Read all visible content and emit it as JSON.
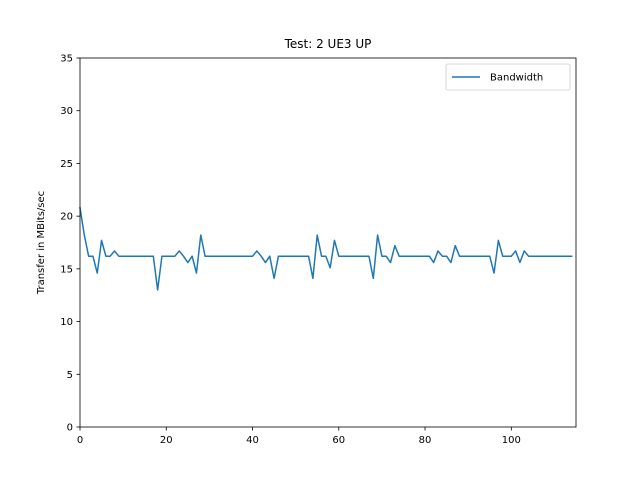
{
  "chart_data": {
    "type": "line",
    "title": "Test: 2 UE3 UP",
    "xlabel": "",
    "ylabel": "Transfer in MBits/sec",
    "xlim": [
      0,
      115
    ],
    "ylim": [
      0,
      35
    ],
    "xticks": [
      0,
      20,
      40,
      60,
      80,
      100
    ],
    "yticks": [
      0,
      5,
      10,
      15,
      20,
      25,
      30,
      35
    ],
    "grid": false,
    "legend_position": "top-right",
    "series": [
      {
        "name": "Bandwidth",
        "color": "#1f77b4",
        "x": [
          0,
          1,
          2,
          3,
          4,
          5,
          6,
          7,
          8,
          9,
          10,
          11,
          12,
          13,
          14,
          15,
          16,
          17,
          18,
          19,
          20,
          21,
          22,
          23,
          24,
          25,
          26,
          27,
          28,
          29,
          30,
          31,
          32,
          33,
          34,
          35,
          36,
          37,
          38,
          39,
          40,
          41,
          42,
          43,
          44,
          45,
          46,
          47,
          48,
          49,
          50,
          51,
          52,
          53,
          54,
          55,
          56,
          57,
          58,
          59,
          60,
          61,
          62,
          63,
          64,
          65,
          66,
          67,
          68,
          69,
          70,
          71,
          72,
          73,
          74,
          75,
          76,
          77,
          78,
          79,
          80,
          81,
          82,
          83,
          84,
          85,
          86,
          87,
          88,
          89,
          90,
          91,
          92,
          93,
          94,
          95,
          96,
          97,
          98,
          99,
          100,
          101,
          102,
          103,
          104,
          105,
          106,
          107,
          108,
          109,
          110,
          111,
          112,
          113,
          114
        ],
        "values": [
          20.8,
          18.2,
          16.2,
          16.2,
          14.6,
          17.7,
          16.2,
          16.2,
          16.7,
          16.2,
          16.2,
          16.2,
          16.2,
          16.2,
          16.2,
          16.2,
          16.2,
          16.2,
          13.0,
          16.2,
          16.2,
          16.2,
          16.2,
          16.7,
          16.2,
          15.6,
          16.2,
          14.6,
          18.2,
          16.2,
          16.2,
          16.2,
          16.2,
          16.2,
          16.2,
          16.2,
          16.2,
          16.2,
          16.2,
          16.2,
          16.2,
          16.7,
          16.2,
          15.6,
          16.2,
          14.1,
          16.2,
          16.2,
          16.2,
          16.2,
          16.2,
          16.2,
          16.2,
          16.2,
          14.1,
          18.2,
          16.2,
          16.2,
          15.1,
          17.7,
          16.2,
          16.2,
          16.2,
          16.2,
          16.2,
          16.2,
          16.2,
          16.2,
          14.1,
          18.2,
          16.2,
          16.2,
          15.6,
          17.2,
          16.2,
          16.2,
          16.2,
          16.2,
          16.2,
          16.2,
          16.2,
          16.2,
          15.6,
          16.7,
          16.2,
          16.2,
          15.6,
          17.2,
          16.2,
          16.2,
          16.2,
          16.2,
          16.2,
          16.2,
          16.2,
          16.2,
          14.6,
          17.7,
          16.2,
          16.2,
          16.2,
          16.7,
          15.6,
          16.7,
          16.2,
          16.2,
          16.2,
          16.2,
          16.2,
          16.2,
          16.2,
          16.2,
          16.2,
          16.2,
          16.2
        ]
      }
    ]
  }
}
